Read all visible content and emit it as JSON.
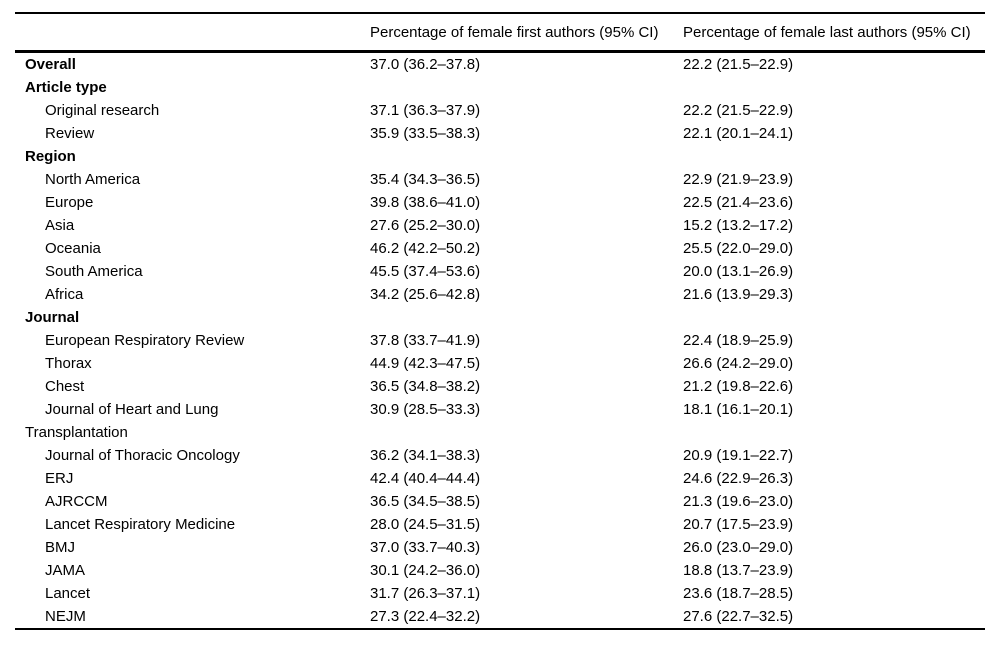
{
  "page": {
    "background_color": "#ffffff",
    "text_color": "#000000"
  },
  "table": {
    "columns": {
      "label": "",
      "first_authors": "Percentage of female first authors (95% CI)",
      "last_authors": "Percentage of female last authors (95% CI)"
    },
    "rows": [
      {
        "label": "Overall",
        "style": "section",
        "first": "37.0 (36.2–37.8)",
        "last": "22.2 (21.5–22.9)"
      },
      {
        "label": "Article type",
        "style": "section",
        "first": "",
        "last": ""
      },
      {
        "label": "Original research",
        "style": "item",
        "first": "37.1 (36.3–37.9)",
        "last": "22.2 (21.5–22.9)"
      },
      {
        "label": "Review",
        "style": "item",
        "first": "35.9 (33.5–38.3)",
        "last": "22.1 (20.1–24.1)"
      },
      {
        "label": "Region",
        "style": "section",
        "first": "",
        "last": ""
      },
      {
        "label": "North America",
        "style": "item",
        "first": "35.4 (34.3–36.5)",
        "last": "22.9 (21.9–23.9)"
      },
      {
        "label": "Europe",
        "style": "item",
        "first": "39.8 (38.6–41.0)",
        "last": "22.5 (21.4–23.6)"
      },
      {
        "label": "Asia",
        "style": "item",
        "first": "27.6 (25.2–30.0)",
        "last": "15.2 (13.2–17.2)"
      },
      {
        "label": "Oceania",
        "style": "item",
        "first": "46.2 (42.2–50.2)",
        "last": "25.5 (22.0–29.0)"
      },
      {
        "label": "South America",
        "style": "item",
        "first": "45.5 (37.4–53.6)",
        "last": "20.0 (13.1–26.9)"
      },
      {
        "label": "Africa",
        "style": "item",
        "first": "34.2 (25.6–42.8)",
        "last": "21.6 (13.9–29.3)"
      },
      {
        "label": "Journal",
        "style": "section",
        "first": "",
        "last": ""
      },
      {
        "label": "European Respiratory Review",
        "style": "item",
        "first": "37.8 (33.7–41.9)",
        "last": "22.4 (18.9–25.9)"
      },
      {
        "label": "Thorax",
        "style": "item",
        "first": "44.9 (42.3–47.5)",
        "last": "26.6 (24.2–29.0)"
      },
      {
        "label": "Chest",
        "style": "item",
        "first": "36.5 (34.8–38.2)",
        "last": "21.2 (19.8–22.6)"
      },
      {
        "label": "Journal of Heart and Lung Transplantation",
        "style": "item",
        "first": "30.9 (28.5–33.3)",
        "last": "18.1 (16.1–20.1)"
      },
      {
        "label": "Journal of Thoracic Oncology",
        "style": "item",
        "first": "36.2 (34.1–38.3)",
        "last": "20.9 (19.1–22.7)"
      },
      {
        "label": "ERJ",
        "style": "item",
        "first": "42.4 (40.4–44.4)",
        "last": "24.6 (22.9–26.3)"
      },
      {
        "label": "AJRCCM",
        "style": "item",
        "first": "36.5 (34.5–38.5)",
        "last": "21.3 (19.6–23.0)"
      },
      {
        "label": "Lancet Respiratory Medicine",
        "style": "item",
        "first": "28.0 (24.5–31.5)",
        "last": "20.7 (17.5–23.9)"
      },
      {
        "label": "BMJ",
        "style": "item",
        "first": "37.0 (33.7–40.3)",
        "last": "26.0 (23.0–29.0)"
      },
      {
        "label": "JAMA",
        "style": "item",
        "first": "30.1 (24.2–36.0)",
        "last": "18.8 (13.7–23.9)"
      },
      {
        "label": "Lancet",
        "style": "item",
        "first": "31.7 (26.3–37.1)",
        "last": "23.6 (18.7–28.5)"
      },
      {
        "label": "NEJM",
        "style": "item",
        "first": "27.3 (22.4–32.2)",
        "last": "27.6 (22.7–32.5)"
      }
    ]
  }
}
